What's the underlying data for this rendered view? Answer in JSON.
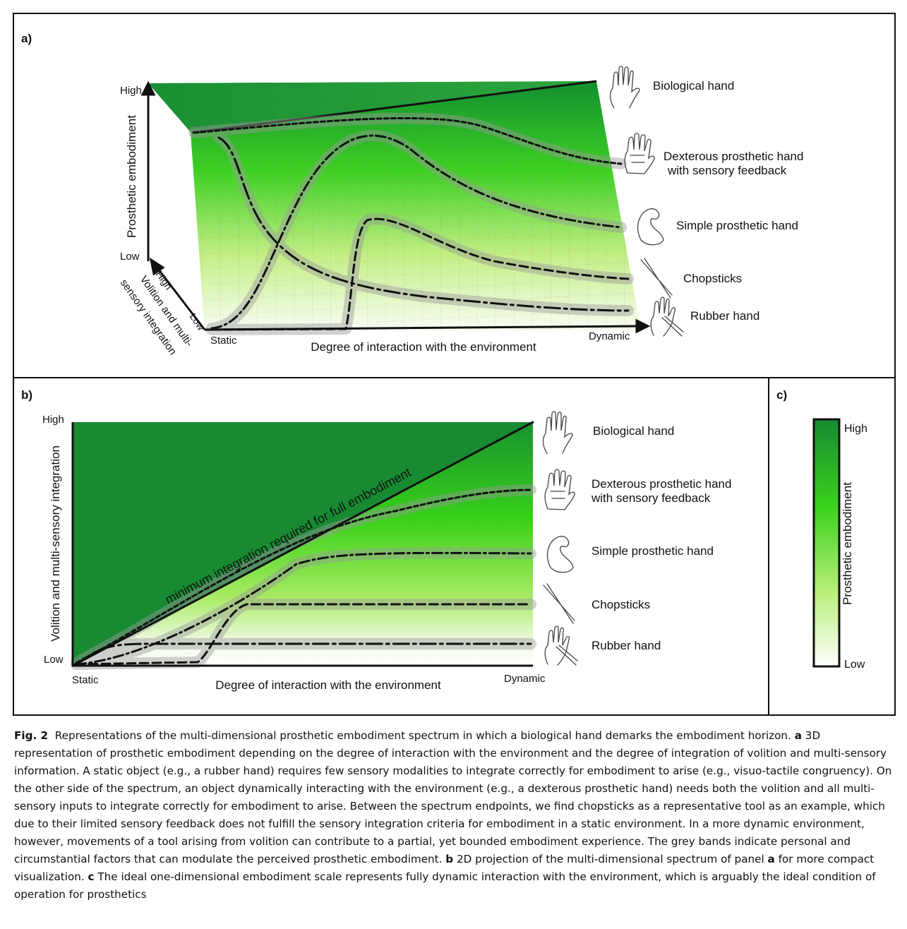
{
  "panels": {
    "a": {
      "label": "a)",
      "y_axis": {
        "title": "Prosthetic embodiment",
        "high": "High",
        "low": "Low"
      },
      "z_axis": {
        "title_line1": "Volition and multi-",
        "title_line2": "sensory integration",
        "high": "High",
        "low": "Low"
      },
      "x_axis": {
        "title": "Degree of interaction with the environment",
        "start": "Static",
        "end": "Dynamic"
      },
      "objects": [
        {
          "name": "Biological hand",
          "line1": "Biological hand",
          "line2": ""
        },
        {
          "name": "Dexterous prosthetic hand",
          "line1": "Dexterous prosthetic hand",
          "line2": "with sensory feedback"
        },
        {
          "name": "Simple prosthetic hand",
          "line1": "Simple prosthetic hand",
          "line2": ""
        },
        {
          "name": "Chopsticks",
          "line1": "Chopsticks",
          "line2": ""
        },
        {
          "name": "Rubber hand",
          "line1": "Rubber hand",
          "line2": ""
        }
      ]
    },
    "b": {
      "label": "b)",
      "y_axis": {
        "title": "Volition and multi-sensory integration",
        "high": "High",
        "low": "Low"
      },
      "x_axis": {
        "title": "Degree of interaction with the environment",
        "start": "Static",
        "end": "Dynamic"
      },
      "diagonal_label": "minimum integration required for full embodiment",
      "objects": [
        {
          "line1": "Biological hand",
          "line2": ""
        },
        {
          "line1": "Dexterous prosthetic hand",
          "line2": "with sensory feedback"
        },
        {
          "line1": "Simple prosthetic hand",
          "line2": ""
        },
        {
          "line1": "Chopsticks",
          "line2": ""
        },
        {
          "line1": "Rubber hand",
          "line2": ""
        }
      ]
    },
    "c": {
      "label": "c)",
      "scale_title": "Prosthetic embodiment",
      "high": "High",
      "low": "Low"
    }
  },
  "colors": {
    "high": "#0f8c2e",
    "mid": "#33d61a",
    "low": "#f7fbf2",
    "band": "#9a9a9a",
    "curve": "#111111"
  },
  "icons": [
    "biological-hand-icon",
    "dexterous-hand-icon",
    "simple-prosthetic-hand-icon",
    "chopsticks-icon",
    "rubber-hand-icon"
  ],
  "caption": {
    "fig_label": "Fig. 2",
    "intro": "Representations of the multi-dimensional prosthetic embodiment spectrum in which a biological hand demarks the embodiment horizon.",
    "a_tag": "a",
    "a_text": "3D representation of prosthetic embodiment depending on the degree of interaction with the environment and the degree of integration of volition and multi-sensory information. A static object (e.g., a rubber hand) requires few sensory modalities to integrate correctly for embodiment to arise (e.g., visuo-tactile congruency). On the other side of the spectrum, an object dynamically interacting with the environment (e.g., a dexterous prosthetic hand) needs both the volition and all multi-sensory inputs to integrate correctly for embodiment to arise. Between the spectrum endpoints, we find chopsticks as a representative tool as an example, which due to their limited sensory feedback does not fulfill the sensory integration criteria for embodiment in a static environment. In a more dynamic environment, however, movements of a tool arising from volition can contribute to a partial, yet bounded embodiment experience. The grey bands indicate personal and circumstantial factors that can modulate the perceived prosthetic embodiment.",
    "b_tag": "b",
    "b_text": "2D projection of the multi-dimensional spectrum of panel",
    "b_ref": "a",
    "b_text2": "for more compact visualization.",
    "c_tag": "c",
    "c_text": "The ideal one-dimensional embodiment scale represents fully dynamic interaction with the environment, which is arguably the ideal condition of operation for prosthetics"
  }
}
